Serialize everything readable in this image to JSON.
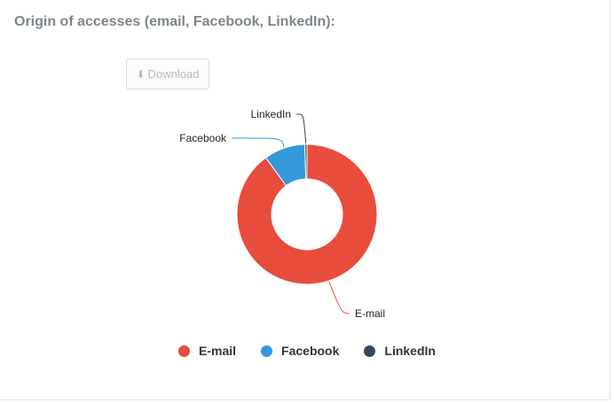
{
  "title": "Origin of accesses (email, Facebook, LinkedIn):",
  "download": {
    "label": "Download",
    "icon": "download-icon"
  },
  "chart_data": {
    "type": "pie",
    "subtype": "donut",
    "title": "",
    "series": [
      {
        "name": "E-mail",
        "value": 90,
        "color": "#e74c3c"
      },
      {
        "name": "Facebook",
        "value": 9.5,
        "color": "#3498db"
      },
      {
        "name": "LinkedIn",
        "value": 0.5,
        "color": "#34495e"
      }
    ],
    "legend_position": "bottom",
    "data_labels": [
      "LinkedIn",
      "Facebook",
      "E-mail"
    ]
  }
}
